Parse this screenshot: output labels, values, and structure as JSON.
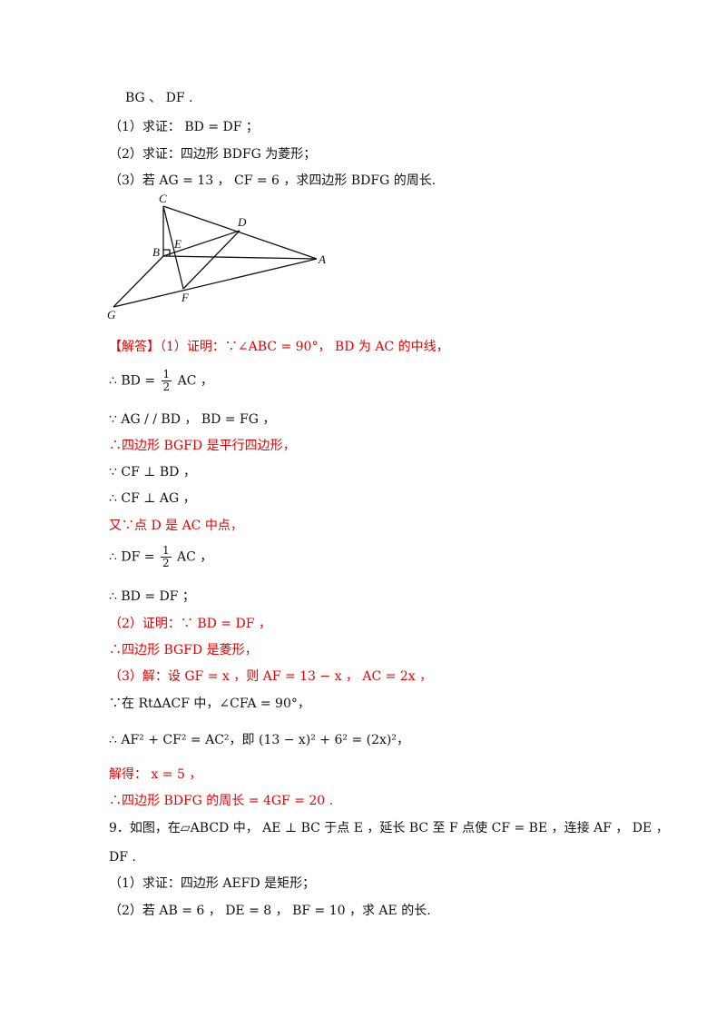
{
  "problem8": {
    "line1": "BG 、 DF .",
    "q1": "（1）求证： BD = DF ；",
    "q2": "（2）求证：四边形 BDFG 为菱形；",
    "q3": "（3）若 AG = 13 ， CF = 6 ，求四边形 BDFG 的周长."
  },
  "figure": {
    "labels": {
      "C": "C",
      "D": "D",
      "B": "B",
      "E": "E",
      "A": "A",
      "F": "F",
      "G": "G"
    }
  },
  "solution": {
    "s1": "【解答】（1）证明：∵∠ABC = 90°， BD 为 AC 的中线，",
    "s2_pre": "∴ BD =",
    "s2_num": "1",
    "s2_den": "2",
    "s2_post": "AC ，",
    "s3": "∵ AG / / BD ， BD = FG ，",
    "s4": "∴四边形 BGFD 是平行四边形，",
    "s5": "∵ CF ⊥ BD ，",
    "s6": "∴ CF ⊥ AG ，",
    "s7": "又∵点 D 是 AC 中点，",
    "s8_pre": "∴ DF =",
    "s8_num": "1",
    "s8_den": "2",
    "s8_post": "AC ，",
    "s9": "∴ BD = DF ；",
    "s10": "（2）证明：∵ BD = DF ，",
    "s11": "∴四边形 BGFD 是菱形，",
    "s12": "（3）解：设 GF = x ，则 AF = 13 − x ， AC = 2x ，",
    "s13": "∵在 Rt∆ACF 中，∠CFA = 90°，",
    "s14": "∴ AF² + CF² = AC²，即 (13 − x)² + 6² = (2x)²，",
    "s15": "解得： x = 5 ，",
    "s16": "∴四边形 BDFG 的周长 = 4GF = 20 ."
  },
  "problem9": {
    "line1": "9．如图，在▱ABCD 中， AE ⊥ BC 于点 E ，延长 BC 至 F 点使 CF = BE ，连接 AF ， DE ，",
    "line2": "DF .",
    "q1": "（1）求证：四边形 AEFD 是矩形；",
    "q2": "（2）若 AB = 6 ， DE = 8 ， BF = 10 ，求 AE 的长."
  }
}
